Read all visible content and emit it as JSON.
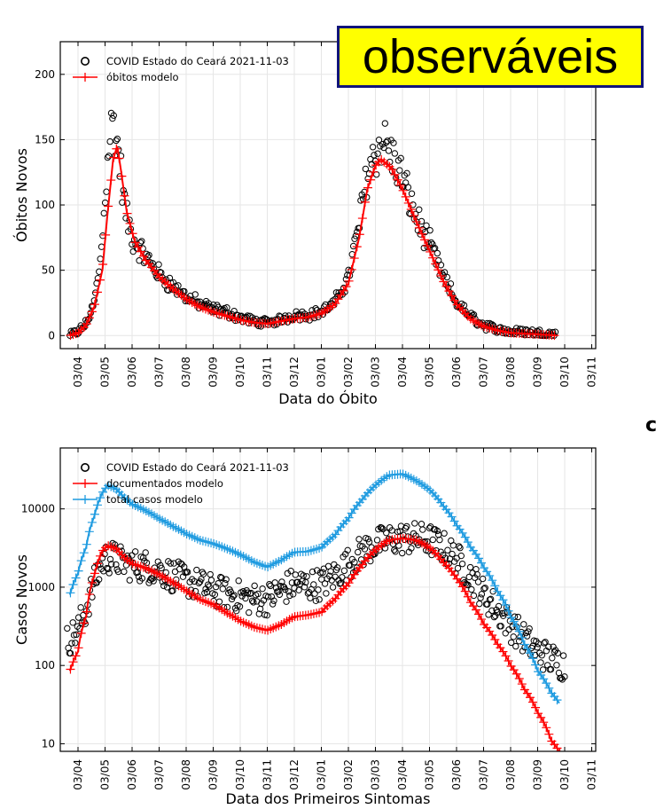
{
  "badge": {
    "text": "observáveis",
    "background": "#ffff00",
    "border": "#10147a"
  },
  "edge_glyph": "c",
  "colors": {
    "data": "#000000",
    "model_red": "#ff0000",
    "model_blue": "#1f9be0",
    "grid": "#e6e6e6"
  },
  "chart_data": [
    {
      "type": "scatter",
      "title": "",
      "xlabel": "Data do Óbito",
      "ylabel": "Óbitos Novos",
      "yscale": "linear",
      "ylim": [
        -10,
        225
      ],
      "yticks": [
        0,
        50,
        100,
        150,
        200
      ],
      "xticks": [
        "03/04",
        "03/05",
        "03/06",
        "03/07",
        "03/08",
        "03/09",
        "03/10",
        "03/11",
        "03/12",
        "03/01",
        "03/02",
        "03/03",
        "03/04",
        "03/05",
        "03/06",
        "03/07",
        "03/08",
        "03/09",
        "03/10",
        "03/11"
      ],
      "grid": true,
      "legend_position": "top-left",
      "series": [
        {
          "name": "COVID Estado do Ceará 2021-11-03",
          "kind": "circles",
          "color": "#000000",
          "anchors": [
            [
              -0.3,
              0
            ],
            [
              0,
              3
            ],
            [
              0.3,
              9
            ],
            [
              0.6,
              25
            ],
            [
              0.85,
              60
            ],
            [
              1.0,
              105
            ],
            [
              1.15,
              150
            ],
            [
              1.3,
              165
            ],
            [
              1.5,
              140
            ],
            [
              1.75,
              95
            ],
            [
              2.0,
              75
            ],
            [
              2.5,
              60
            ],
            [
              3.0,
              47
            ],
            [
              3.5,
              38
            ],
            [
              4.0,
              30
            ],
            [
              4.5,
              24
            ],
            [
              5.0,
              20
            ],
            [
              5.5,
              18
            ],
            [
              6.0,
              14
            ],
            [
              6.5,
              11
            ],
            [
              7.0,
              10
            ],
            [
              7.5,
              12
            ],
            [
              8.0,
              16
            ],
            [
              8.5,
              16
            ],
            [
              9.0,
              18
            ],
            [
              9.5,
              25
            ],
            [
              10.0,
              45
            ],
            [
              10.4,
              85
            ],
            [
              10.7,
              125
            ],
            [
              11.0,
              140
            ],
            [
              11.3,
              150
            ],
            [
              11.6,
              138
            ],
            [
              12.0,
              120
            ],
            [
              12.5,
              90
            ],
            [
              13.0,
              70
            ],
            [
              13.5,
              45
            ],
            [
              14.0,
              25
            ],
            [
              14.5,
              15
            ],
            [
              15.0,
              8
            ],
            [
              15.5,
              5
            ],
            [
              16.0,
              3
            ],
            [
              16.5,
              3
            ],
            [
              17.0,
              2
            ],
            [
              17.7,
              1
            ]
          ],
          "noise": 0.13
        },
        {
          "name": "óbitos modelo",
          "kind": "line_plus",
          "color": "#ff0000",
          "anchors": [
            [
              -0.3,
              0
            ],
            [
              0,
              2
            ],
            [
              0.3,
              8
            ],
            [
              0.6,
              22
            ],
            [
              0.9,
              50
            ],
            [
              1.1,
              95
            ],
            [
              1.3,
              135
            ],
            [
              1.45,
              145
            ],
            [
              1.6,
              125
            ],
            [
              1.8,
              95
            ],
            [
              2.1,
              72
            ],
            [
              2.5,
              58
            ],
            [
              3.0,
              45
            ],
            [
              3.5,
              36
            ],
            [
              4.0,
              28
            ],
            [
              4.5,
              22
            ],
            [
              5.0,
              18
            ],
            [
              5.5,
              15
            ],
            [
              6.0,
              12
            ],
            [
              6.5,
              10
            ],
            [
              7.0,
              9
            ],
            [
              7.5,
              11
            ],
            [
              8.0,
              13
            ],
            [
              8.5,
              14
            ],
            [
              9.0,
              17
            ],
            [
              9.5,
              24
            ],
            [
              10.0,
              40
            ],
            [
              10.4,
              75
            ],
            [
              10.7,
              112
            ],
            [
              11.0,
              130
            ],
            [
              11.2,
              135
            ],
            [
              11.6,
              128
            ],
            [
              12.0,
              112
            ],
            [
              12.5,
              88
            ],
            [
              13.0,
              65
            ],
            [
              13.5,
              42
            ],
            [
              14.0,
              24
            ],
            [
              14.5,
              13
            ],
            [
              15.0,
              7
            ],
            [
              15.5,
              4
            ],
            [
              16.0,
              2
            ],
            [
              17.0,
              1
            ],
            [
              17.7,
              0
            ]
          ]
        }
      ]
    },
    {
      "type": "scatter",
      "title": "",
      "xlabel": "Data dos Primeiros Sintomas",
      "ylabel": "Casos Novos",
      "yscale": "log",
      "ylim": [
        8,
        60000
      ],
      "yticks": [
        10,
        100,
        1000,
        10000
      ],
      "xticks": [
        "03/04",
        "03/05",
        "03/06",
        "03/07",
        "03/08",
        "03/09",
        "03/10",
        "03/11",
        "03/12",
        "03/01",
        "03/02",
        "03/03",
        "03/04",
        "03/05",
        "03/06",
        "03/07",
        "03/08",
        "03/09",
        "03/10",
        "03/11"
      ],
      "grid": true,
      "legend_position": "top-left",
      "series": [
        {
          "name": "COVID Estado do Ceará 2021-11-03",
          "kind": "circles",
          "color": "#000000",
          "anchors": [
            [
              -0.4,
              200
            ],
            [
              0,
              280
            ],
            [
              0.3,
              500
            ],
            [
              0.6,
              1100
            ],
            [
              0.85,
              1900
            ],
            [
              1.0,
              2300
            ],
            [
              1.3,
              2400
            ],
            [
              1.6,
              2100
            ],
            [
              2.0,
              1900
            ],
            [
              2.5,
              1850
            ],
            [
              3.0,
              1650
            ],
            [
              3.5,
              1400
            ],
            [
              4.0,
              1200
            ],
            [
              4.5,
              1050
            ],
            [
              5.0,
              900
            ],
            [
              5.5,
              820
            ],
            [
              6.0,
              760
            ],
            [
              6.5,
              700
            ],
            [
              7.0,
              700
            ],
            [
              7.5,
              900
            ],
            [
              8.0,
              1100
            ],
            [
              8.5,
              1050
            ],
            [
              9.0,
              1100
            ],
            [
              9.5,
              1400
            ],
            [
              10.0,
              2000
            ],
            [
              10.5,
              2800
            ],
            [
              11.0,
              3500
            ],
            [
              11.5,
              4000
            ],
            [
              12.0,
              4200
            ],
            [
              12.5,
              4200
            ],
            [
              13.0,
              4000
            ],
            [
              13.5,
              3200
            ],
            [
              14.0,
              2300
            ],
            [
              14.5,
              1400
            ],
            [
              15.0,
              800
            ],
            [
              15.5,
              500
            ],
            [
              16.0,
              320
            ],
            [
              16.5,
              220
            ],
            [
              17.0,
              150
            ],
            [
              17.5,
              120
            ],
            [
              18.0,
              100
            ]
          ],
          "noise": 0.3
        },
        {
          "name": "documentados modelo",
          "kind": "line_plus",
          "color": "#ff0000",
          "anchors": [
            [
              -0.3,
              85
            ],
            [
              0,
              150
            ],
            [
              0.3,
              420
            ],
            [
              0.6,
              1400
            ],
            [
              0.9,
              2900
            ],
            [
              1.1,
              3400
            ],
            [
              1.4,
              3100
            ],
            [
              1.7,
              2400
            ],
            [
              2.0,
              2000
            ],
            [
              2.5,
              1750
            ],
            [
              3.0,
              1450
            ],
            [
              3.5,
              1150
            ],
            [
              4.0,
              900
            ],
            [
              4.5,
              700
            ],
            [
              5.0,
              600
            ],
            [
              5.5,
              470
            ],
            [
              6.0,
              370
            ],
            [
              6.5,
              310
            ],
            [
              7.0,
              280
            ],
            [
              7.5,
              330
            ],
            [
              8.0,
              420
            ],
            [
              8.5,
              440
            ],
            [
              9.0,
              480
            ],
            [
              9.5,
              700
            ],
            [
              10.0,
              1100
            ],
            [
              10.5,
              1900
            ],
            [
              11.0,
              3000
            ],
            [
              11.5,
              4000
            ],
            [
              12.0,
              4200
            ],
            [
              12.5,
              4000
            ],
            [
              13.0,
              3200
            ],
            [
              13.5,
              2100
            ],
            [
              14.0,
              1300
            ],
            [
              14.5,
              650
            ],
            [
              15.0,
              340
            ],
            [
              15.5,
              190
            ],
            [
              16.0,
              100
            ],
            [
              16.5,
              50
            ],
            [
              17.0,
              25
            ],
            [
              17.5,
              11
            ],
            [
              17.9,
              7
            ]
          ]
        },
        {
          "name": "total casos modelo",
          "kind": "line_plus",
          "color": "#1f9be0",
          "anchors": [
            [
              -0.3,
              800
            ],
            [
              0,
              1500
            ],
            [
              0.3,
              3200
            ],
            [
              0.6,
              8000
            ],
            [
              0.9,
              16000
            ],
            [
              1.1,
              20000
            ],
            [
              1.4,
              18000
            ],
            [
              1.7,
              14000
            ],
            [
              2.0,
              11500
            ],
            [
              2.5,
              9500
            ],
            [
              3.0,
              7500
            ],
            [
              3.5,
              6000
            ],
            [
              4.0,
              4800
            ],
            [
              4.5,
              4000
            ],
            [
              5.0,
              3600
            ],
            [
              5.5,
              3100
            ],
            [
              6.0,
              2600
            ],
            [
              6.5,
              2100
            ],
            [
              7.0,
              1800
            ],
            [
              7.5,
              2200
            ],
            [
              8.0,
              2800
            ],
            [
              8.5,
              2850
            ],
            [
              9.0,
              3200
            ],
            [
              9.5,
              4600
            ],
            [
              10.0,
              7500
            ],
            [
              10.5,
              13000
            ],
            [
              11.0,
              20000
            ],
            [
              11.5,
              27000
            ],
            [
              12.0,
              28000
            ],
            [
              12.5,
              23000
            ],
            [
              13.0,
              17500
            ],
            [
              13.5,
              11000
            ],
            [
              14.0,
              6200
            ],
            [
              14.5,
              3300
            ],
            [
              15.0,
              1800
            ],
            [
              15.5,
              900
            ],
            [
              16.0,
              420
            ],
            [
              16.5,
              190
            ],
            [
              17.0,
              85
            ],
            [
              17.5,
              45
            ],
            [
              17.8,
              33
            ]
          ]
        }
      ]
    }
  ]
}
